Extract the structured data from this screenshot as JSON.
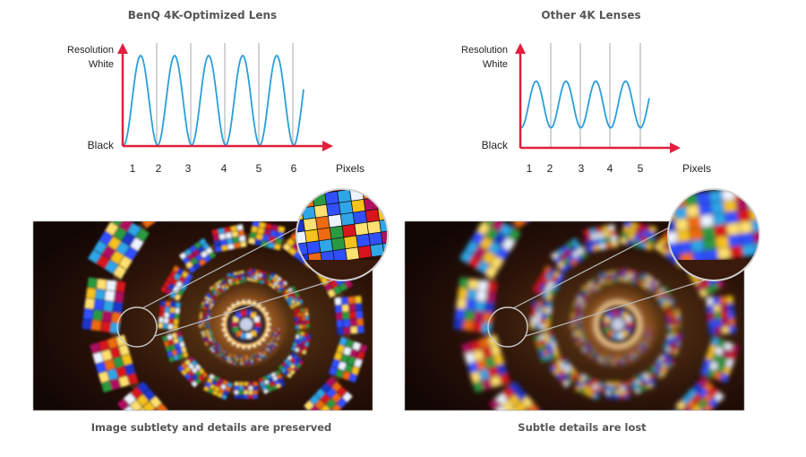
{
  "chart_data": [
    {
      "type": "line",
      "title": "BenQ 4K-Optimized Lens",
      "ylabel_top": "Resolution",
      "y_high_label": "White",
      "y_low_label": "Black",
      "xlabel": "Pixels",
      "x_ticks": [
        "1",
        "2",
        "3",
        "4",
        "5",
        "6"
      ],
      "series": [
        {
          "name": "resolution",
          "cycles": 5.3,
          "min": 0.0,
          "max": 1.0
        }
      ],
      "ylim": [
        0,
        1
      ],
      "grid": "vertical",
      "line_color": "#2a9fd8",
      "axis_color": "#e0203c",
      "caption": "Image subtlety and details are preserved"
    },
    {
      "type": "line",
      "title": "Other 4K Lenses",
      "ylabel_top": "Resolution",
      "y_high_label": "White",
      "y_low_label": "Black",
      "xlabel": "Pixels",
      "x_ticks": [
        "1",
        "2",
        "3",
        "4",
        "5"
      ],
      "series": [
        {
          "name": "resolution",
          "cycles": 4.3,
          "min": 0.21,
          "max": 0.72
        }
      ],
      "ylim": [
        0,
        1
      ],
      "grid": "vertical",
      "line_color": "#2a9fd8",
      "axis_color": "#e0203c",
      "caption": "Subtle details are lost"
    }
  ]
}
